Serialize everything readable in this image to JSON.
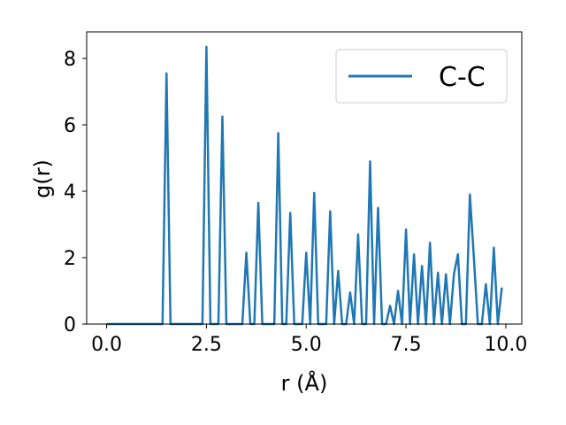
{
  "chart_data": {
    "type": "line",
    "title": "",
    "xlabel": "r (Å)",
    "ylabel": "g(r)",
    "xlim": [
      -0.5,
      10.4
    ],
    "ylim": [
      0,
      8.8
    ],
    "xticks": [
      0.0,
      2.5,
      5.0,
      7.5,
      10.0
    ],
    "xtick_labels": [
      "0.0",
      "2.5",
      "5.0",
      "7.5",
      "10.0"
    ],
    "yticks": [
      0,
      2,
      4,
      6,
      8
    ],
    "ytick_labels": [
      "0",
      "2",
      "4",
      "6",
      "8"
    ],
    "grid": false,
    "legend_position": "top-right",
    "series": [
      {
        "name": "C-C",
        "color": "#1f77b4",
        "x": [
          0.0,
          0.1,
          0.2,
          0.3,
          0.4,
          0.5,
          0.6,
          0.7,
          0.8,
          0.9,
          1.0,
          1.1,
          1.2,
          1.3,
          1.4,
          1.5,
          1.6,
          1.7,
          1.8,
          1.9,
          2.0,
          2.1,
          2.2,
          2.3,
          2.4,
          2.5,
          2.6,
          2.7,
          2.8,
          2.9,
          3.0,
          3.1,
          3.2,
          3.3,
          3.4,
          3.5,
          3.6,
          3.7,
          3.8,
          3.9,
          4.0,
          4.1,
          4.2,
          4.3,
          4.4,
          4.5,
          4.6,
          4.7,
          4.8,
          4.9,
          5.0,
          5.1,
          5.2,
          5.3,
          5.4,
          5.5,
          5.6,
          5.7,
          5.8,
          5.9,
          6.0,
          6.1,
          6.2,
          6.3,
          6.4,
          6.5,
          6.6,
          6.7,
          6.8,
          6.9,
          7.0,
          7.1,
          7.2,
          7.3,
          7.4,
          7.5,
          7.6,
          7.7,
          7.8,
          7.9,
          8.0,
          8.1,
          8.2,
          8.3,
          8.4,
          8.5,
          8.6,
          8.7,
          8.8,
          8.9,
          9.0,
          9.1,
          9.2,
          9.3,
          9.4,
          9.5,
          9.6,
          9.7,
          9.8,
          9.9
        ],
        "y": [
          0,
          0,
          0,
          0,
          0,
          0,
          0,
          0,
          0,
          0,
          0,
          0,
          0,
          0,
          0,
          7.55,
          0,
          0,
          0,
          0,
          0,
          0,
          0,
          0,
          0,
          8.35,
          0,
          0,
          0,
          6.25,
          0,
          0,
          0,
          0,
          0,
          2.15,
          0,
          0,
          3.65,
          0,
          0,
          0,
          0,
          5.75,
          0,
          0,
          3.35,
          0,
          0,
          0,
          2.15,
          0,
          3.95,
          0,
          0,
          0,
          3.4,
          0,
          1.6,
          0,
          0,
          0.95,
          0,
          2.7,
          0,
          0,
          4.9,
          0,
          3.5,
          0,
          0,
          0.55,
          0,
          1.0,
          0,
          2.85,
          0,
          2.1,
          0,
          1.75,
          0,
          2.45,
          0,
          1.55,
          0,
          1.5,
          0,
          1.5,
          2.1,
          0,
          0,
          3.9,
          2.0,
          0,
          0,
          1.2,
          0,
          2.3,
          0,
          1.1
        ]
      }
    ]
  }
}
